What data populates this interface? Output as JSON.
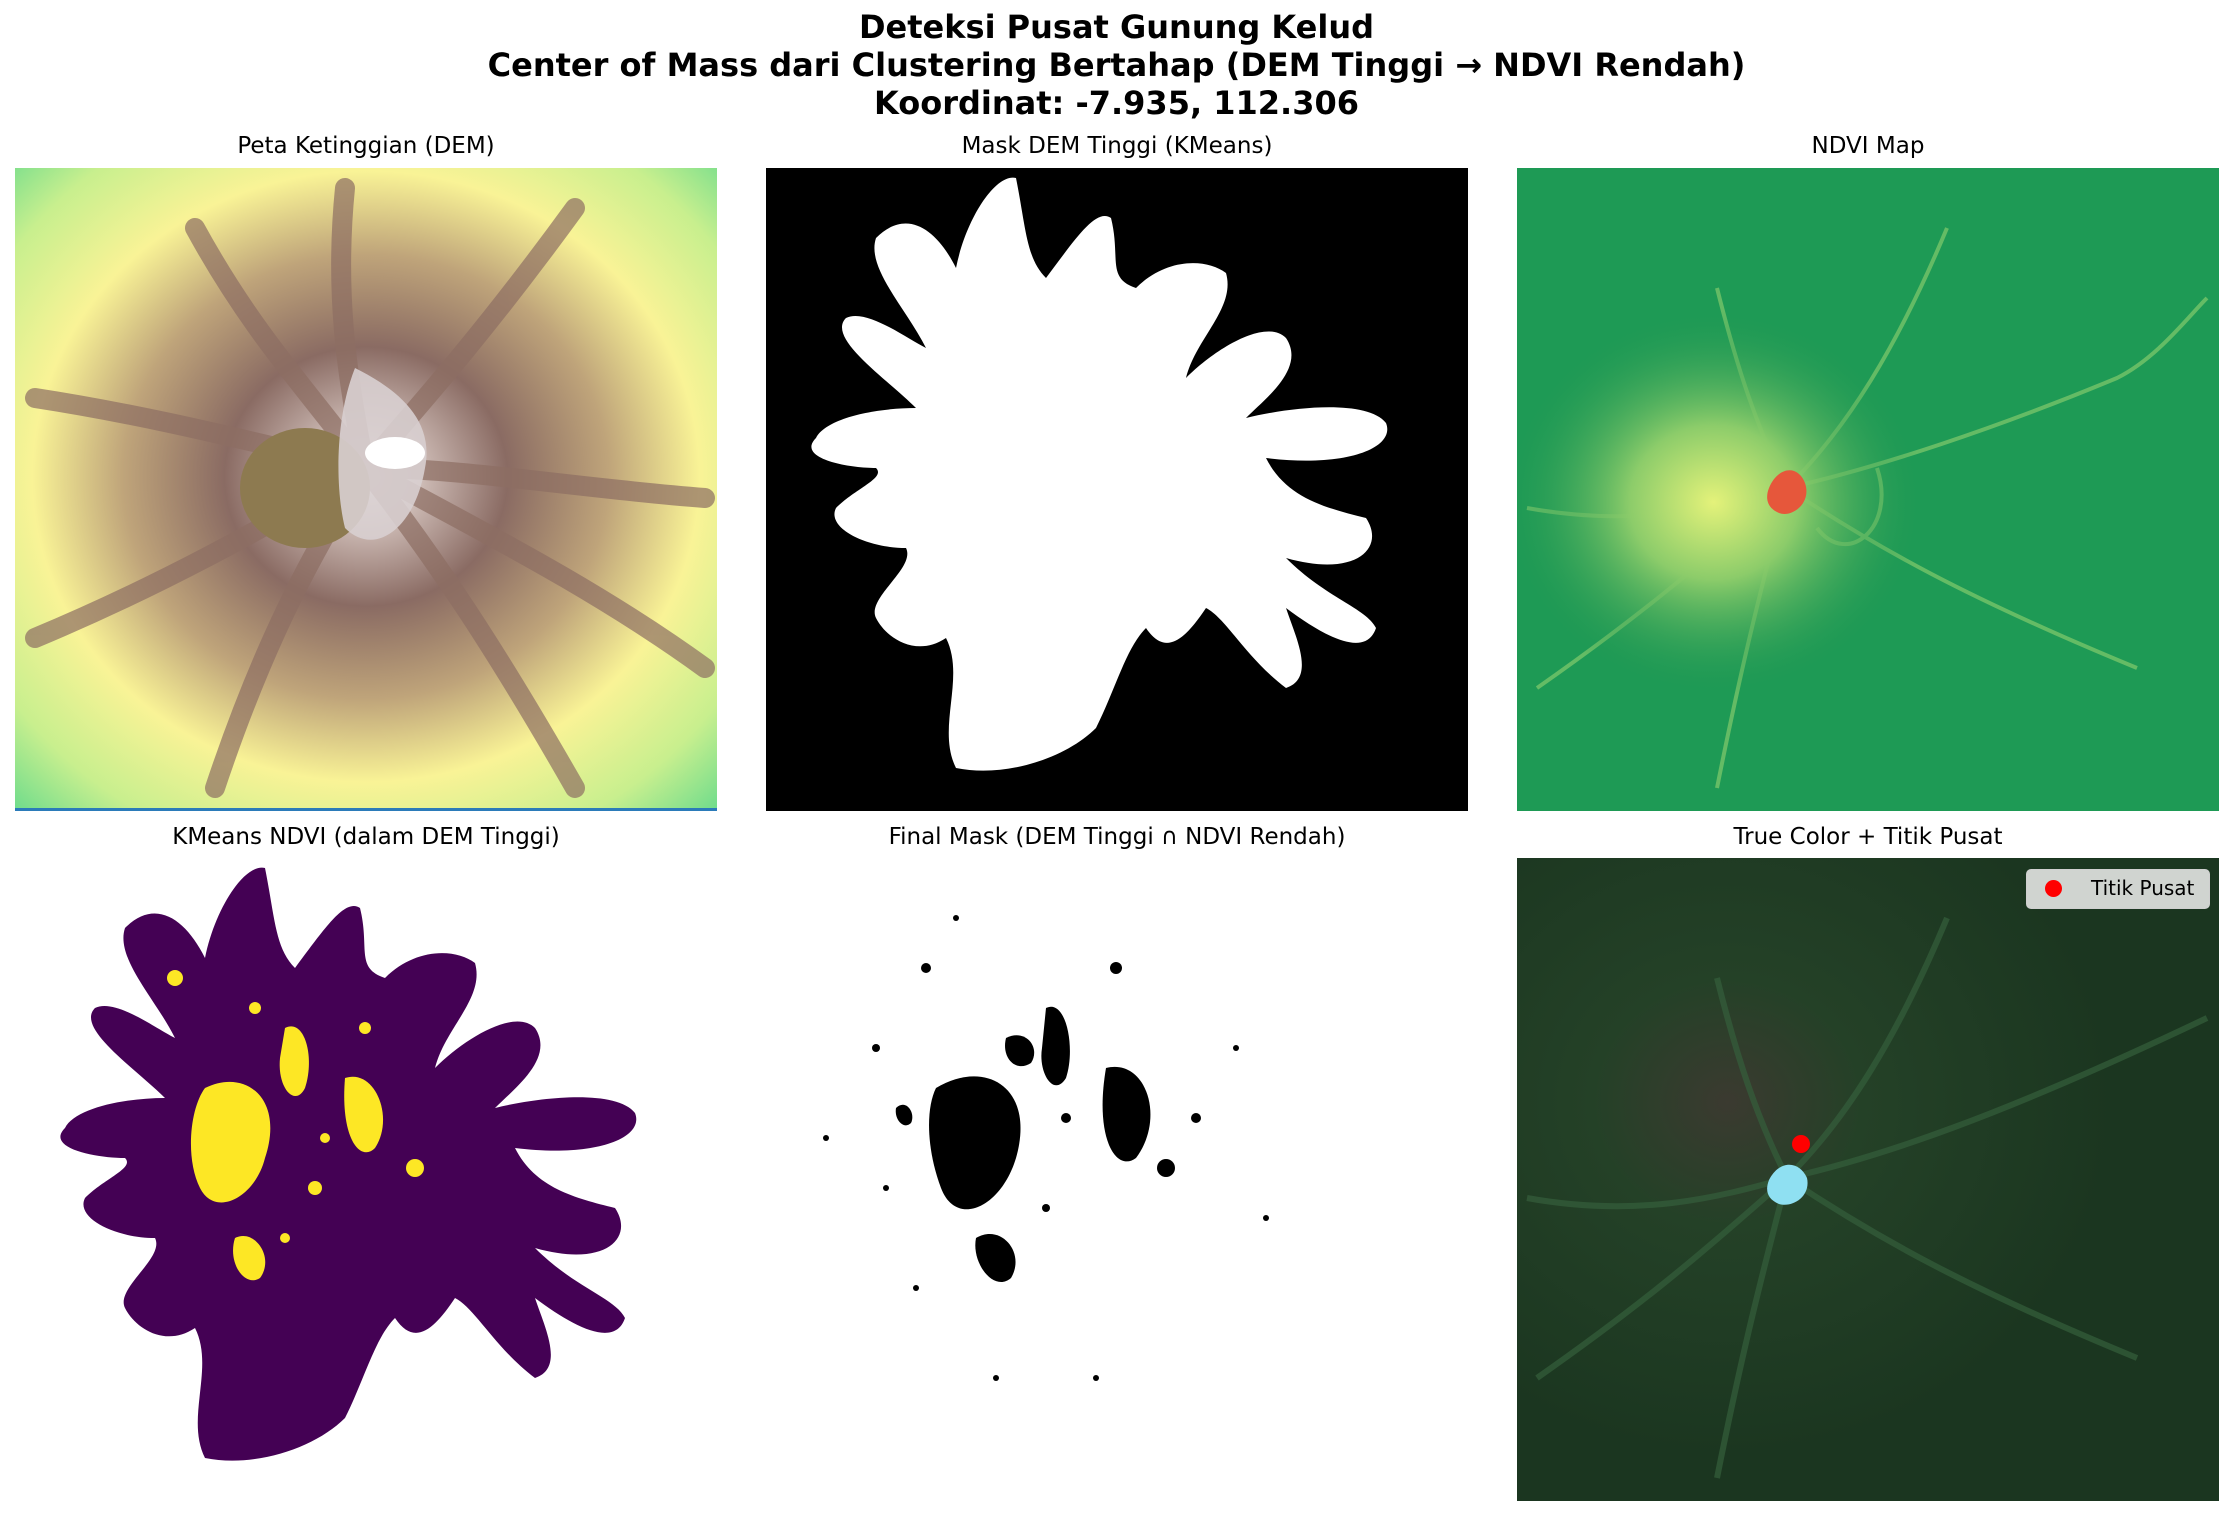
{
  "figure": {
    "title_line1": "Deteksi Pusat Gunung Kelud",
    "title_line2": "Center of Mass dari Clustering Bertahap (DEM Tinggi → NDVI Rendah)",
    "title_line3": "Koordinat: -7.935, 112.306"
  },
  "panels": [
    {
      "title": "Peta Ketinggian (DEM)",
      "content": "dem-elevation-map"
    },
    {
      "title": "Mask DEM Tinggi (KMeans)",
      "content": "high-dem-binary-mask"
    },
    {
      "title": "NDVI Map",
      "content": "ndvi-map"
    },
    {
      "title": "KMeans NDVI (dalam DEM Tinggi)",
      "content": "kmeans-ndvi-clusters"
    },
    {
      "title": "Final Mask (DEM Tinggi ∩ NDVI Rendah)",
      "content": "final-mask"
    },
    {
      "title": "True Color + Titik Pusat",
      "content": "true-color-with-center-point"
    }
  ],
  "legend": {
    "label": "Titik Pusat",
    "marker_color": "#ff0000"
  },
  "colors": {
    "dem_low": "#7fe08f",
    "dem_mid": "#fbfb9b",
    "dem_high": "#7a5a55",
    "dem_peak": "#ffffff",
    "ndvi_high": "#1a9850",
    "ndvi_low": "#e6573b",
    "cluster_a": "#440154",
    "cluster_b": "#fde725",
    "true_color_base": "#1f3a22",
    "center_point": "#ff0000"
  }
}
